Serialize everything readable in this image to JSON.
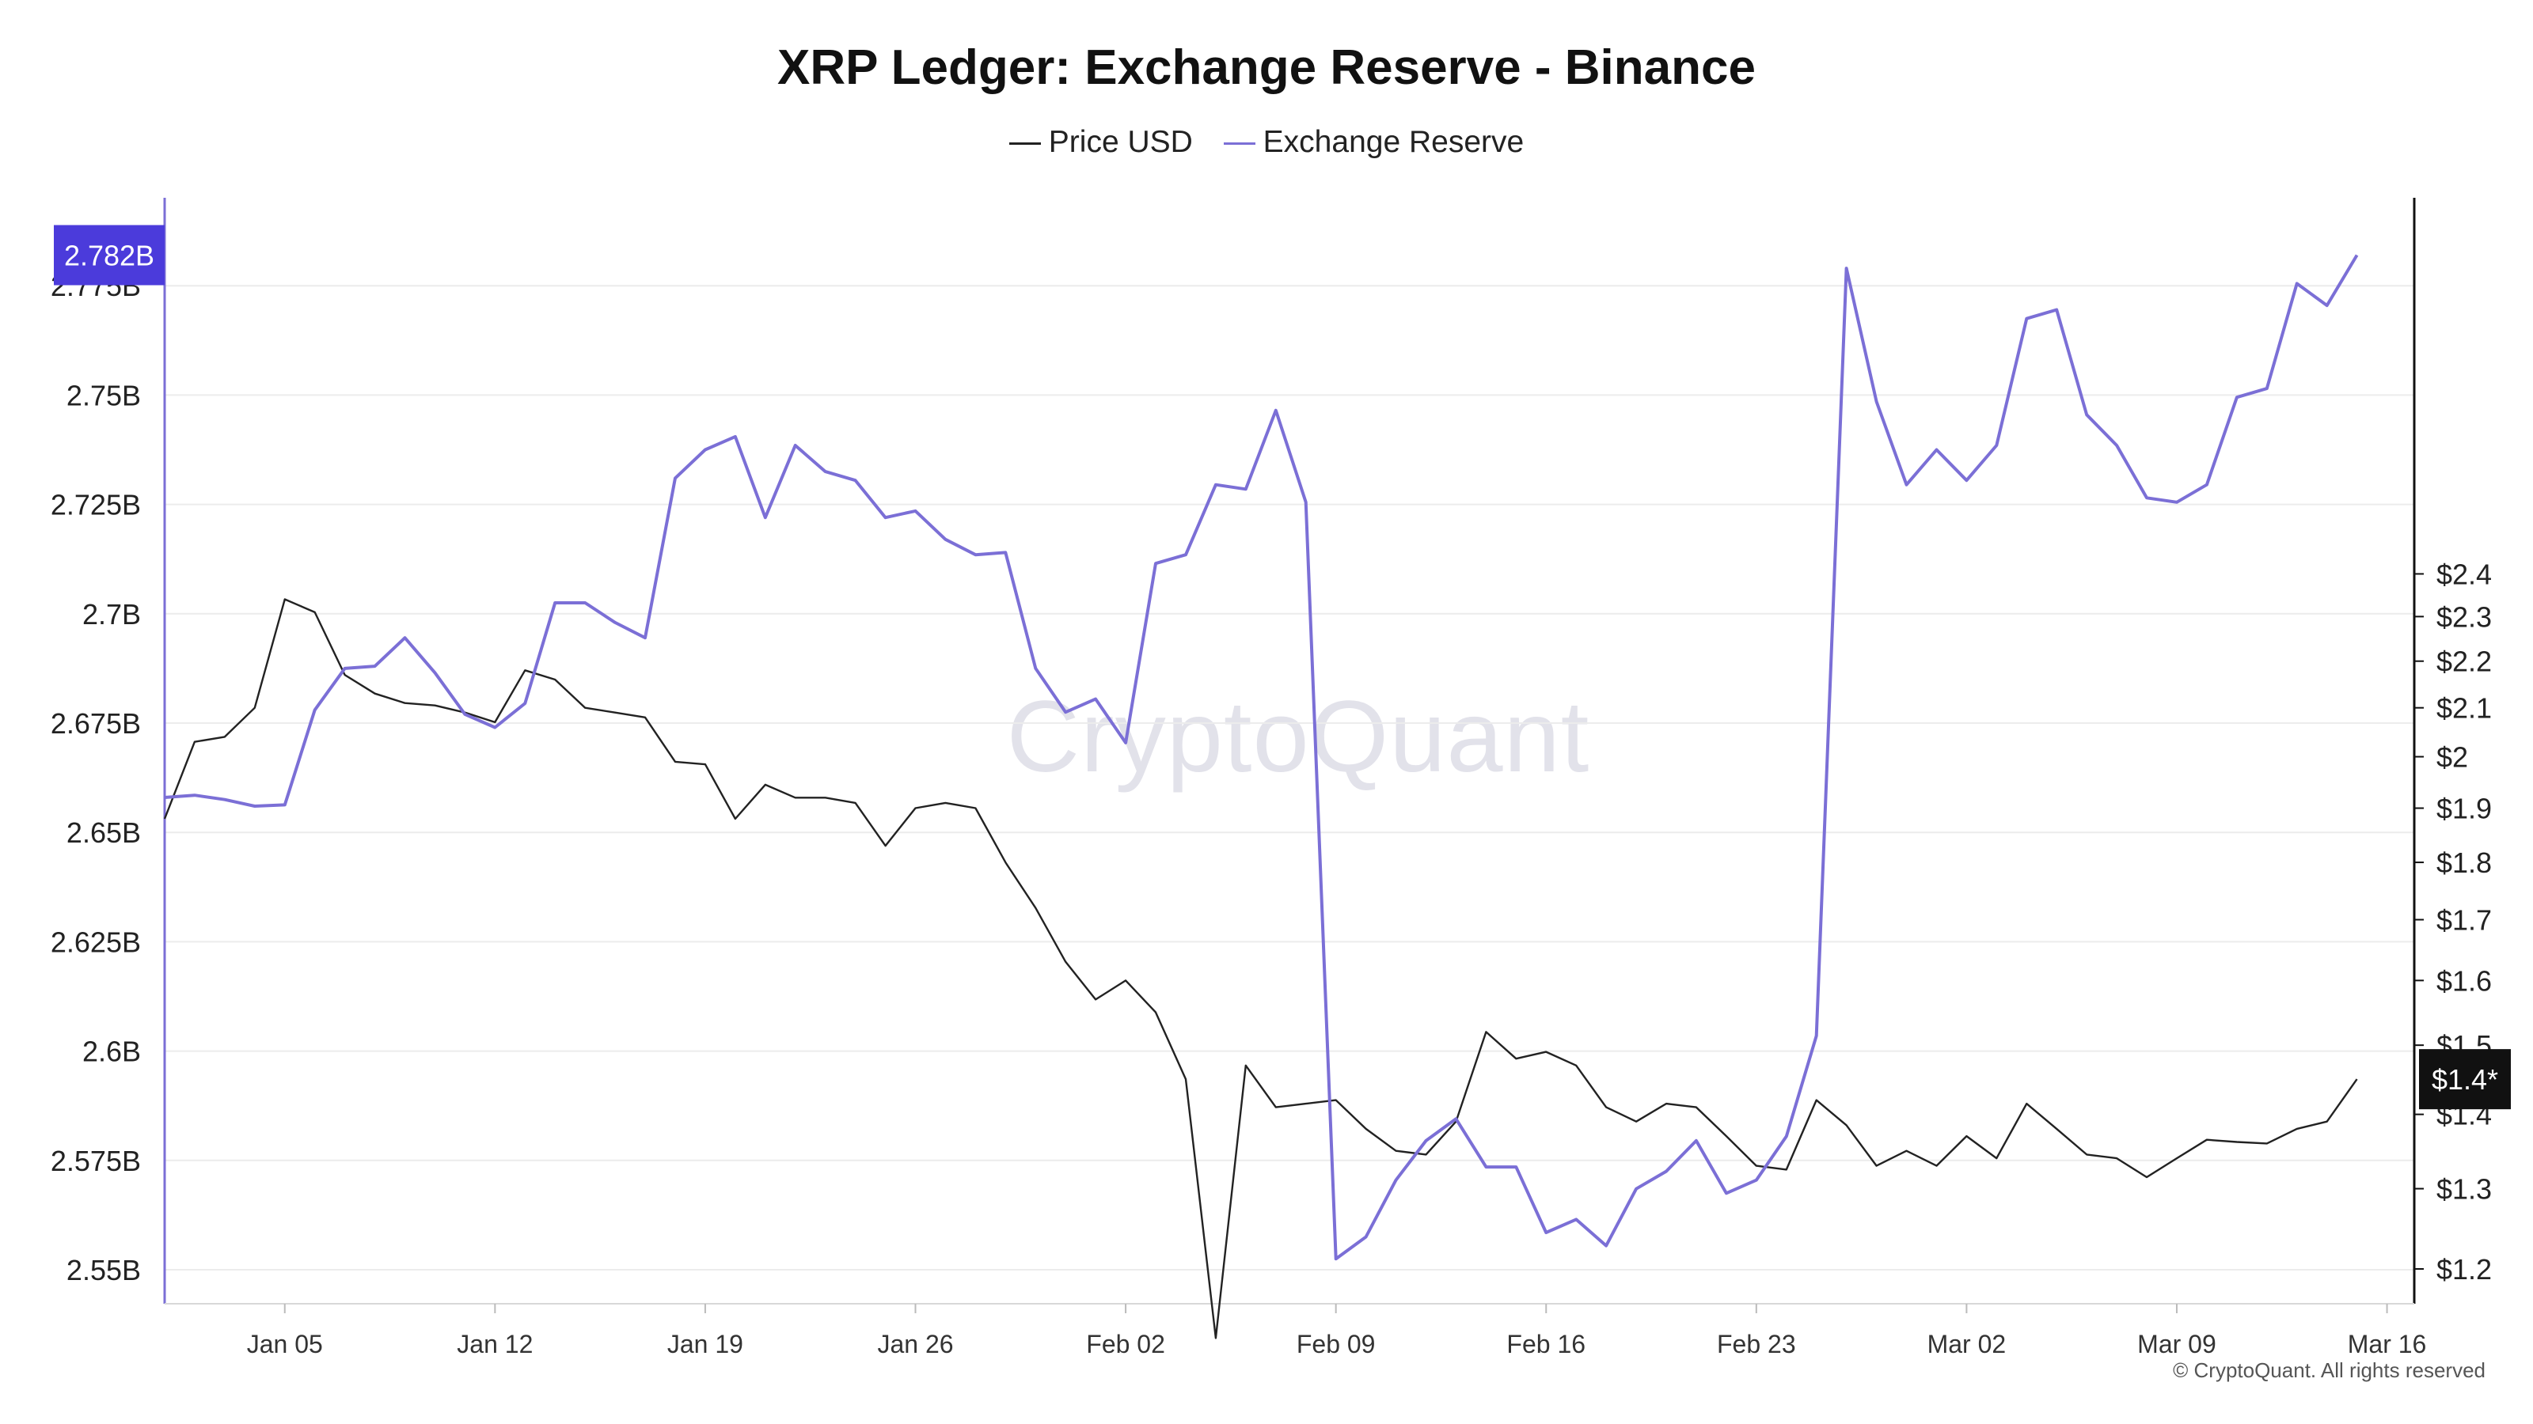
{
  "chart_data": {
    "type": "line",
    "title": "XRP Ledger: Exchange Reserve - Binance",
    "watermark": "CryptoQuant",
    "copyright": "© CryptoQuant. All rights reserved",
    "x_start": "2025-01-01",
    "x_tick_labels": [
      "Jan 05",
      "Jan 12",
      "Jan 19",
      "Jan 26",
      "Feb 02",
      "Feb 09",
      "Feb 16",
      "Feb 23",
      "Mar 02",
      "Mar 09",
      "Mar 16"
    ],
    "x_tick_dates": [
      "2025-01-05",
      "2025-01-12",
      "2025-01-19",
      "2025-01-26",
      "2025-02-02",
      "2025-02-09",
      "2025-02-16",
      "2025-02-23",
      "2025-03-02",
      "2025-03-09",
      "2025-03-16"
    ],
    "left_axis": {
      "series": "Exchange Reserve",
      "ticks": [
        "2.55B",
        "2.575B",
        "2.6B",
        "2.625B",
        "2.65B",
        "2.675B",
        "2.7B",
        "2.725B",
        "2.75B",
        "2.775B"
      ],
      "tick_values": [
        2.55,
        2.575,
        2.6,
        2.625,
        2.65,
        2.675,
        2.7,
        2.725,
        2.75,
        2.775
      ],
      "unit": "B",
      "current_label": "2.782B",
      "current_value": 2.782
    },
    "right_axis": {
      "series": "Price USD",
      "scale": "log",
      "ticks": [
        "$1.2",
        "$1.3",
        "$1.4",
        "$1.5",
        "$1.6",
        "$1.7",
        "$1.8",
        "$1.9",
        "$2",
        "$2.1",
        "$2.2",
        "$2.3",
        "$2.4"
      ],
      "tick_values": [
        1.2,
        1.3,
        1.4,
        1.5,
        1.6,
        1.7,
        1.8,
        1.9,
        2.0,
        2.1,
        2.2,
        2.3,
        2.4
      ],
      "current_label": "$1.4*",
      "current_value": 1.45
    },
    "grid": true,
    "legend_position": "top-center",
    "series": [
      {
        "name": "Price USD",
        "color": "#222222",
        "axis": "right",
        "points": [
          [
            "2025-01-01",
            1.88
          ],
          [
            "2025-01-02",
            2.03
          ],
          [
            "2025-01-03",
            2.04
          ],
          [
            "2025-01-04",
            2.1
          ],
          [
            "2025-01-05",
            2.34
          ],
          [
            "2025-01-06",
            2.31
          ],
          [
            "2025-01-07",
            2.17
          ],
          [
            "2025-01-08",
            2.13
          ],
          [
            "2025-01-09",
            2.11
          ],
          [
            "2025-01-10",
            2.105
          ],
          [
            "2025-01-11",
            2.09
          ],
          [
            "2025-01-12",
            2.07
          ],
          [
            "2025-01-13",
            2.18
          ],
          [
            "2025-01-14",
            2.16
          ],
          [
            "2025-01-15",
            2.1
          ],
          [
            "2025-01-16",
            2.09
          ],
          [
            "2025-01-17",
            2.08
          ],
          [
            "2025-01-18",
            1.99
          ],
          [
            "2025-01-19",
            1.985
          ],
          [
            "2025-01-20",
            1.88
          ],
          [
            "2025-01-21",
            1.945
          ],
          [
            "2025-01-22",
            1.92
          ],
          [
            "2025-01-23",
            1.92
          ],
          [
            "2025-01-24",
            1.91
          ],
          [
            "2025-01-25",
            1.83
          ],
          [
            "2025-01-26",
            1.9
          ],
          [
            "2025-01-27",
            1.91
          ],
          [
            "2025-01-28",
            1.9
          ],
          [
            "2025-01-29",
            1.8
          ],
          [
            "2025-01-30",
            1.72
          ],
          [
            "2025-01-31",
            1.63
          ],
          [
            "2025-02-01",
            1.57
          ],
          [
            "2025-02-02",
            1.6
          ],
          [
            "2025-02-03",
            1.55
          ],
          [
            "2025-02-04",
            1.45
          ],
          [
            "2025-02-05",
            1.12
          ],
          [
            "2025-02-06",
            1.47
          ],
          [
            "2025-02-07",
            1.41
          ],
          [
            "2025-02-08",
            1.415
          ],
          [
            "2025-02-09",
            1.42
          ],
          [
            "2025-02-10",
            1.38
          ],
          [
            "2025-02-11",
            1.35
          ],
          [
            "2025-02-12",
            1.345
          ],
          [
            "2025-02-13",
            1.39
          ],
          [
            "2025-02-14",
            1.52
          ],
          [
            "2025-02-15",
            1.48
          ],
          [
            "2025-02-16",
            1.49
          ],
          [
            "2025-02-17",
            1.47
          ],
          [
            "2025-02-18",
            1.41
          ],
          [
            "2025-02-19",
            1.39
          ],
          [
            "2025-02-20",
            1.415
          ],
          [
            "2025-02-21",
            1.41
          ],
          [
            "2025-02-22",
            1.37
          ],
          [
            "2025-02-23",
            1.33
          ],
          [
            "2025-02-24",
            1.325
          ],
          [
            "2025-02-25",
            1.42
          ],
          [
            "2025-02-26",
            1.385
          ],
          [
            "2025-02-27",
            1.33
          ],
          [
            "2025-02-28",
            1.35
          ],
          [
            "2025-03-01",
            1.33
          ],
          [
            "2025-03-02",
            1.37
          ],
          [
            "2025-03-03",
            1.34
          ],
          [
            "2025-03-04",
            1.415
          ],
          [
            "2025-03-05",
            1.38
          ],
          [
            "2025-03-06",
            1.345
          ],
          [
            "2025-03-07",
            1.34
          ],
          [
            "2025-03-08",
            1.315
          ],
          [
            "2025-03-09",
            1.34
          ],
          [
            "2025-03-10",
            1.365
          ],
          [
            "2025-03-11",
            1.362
          ],
          [
            "2025-03-12",
            1.36
          ],
          [
            "2025-03-13",
            1.38
          ],
          [
            "2025-03-14",
            1.39
          ],
          [
            "2025-03-15",
            1.45
          ]
        ]
      },
      {
        "name": "Exchange Reserve",
        "color": "#7b6fd6",
        "axis": "left",
        "points": [
          [
            "2025-01-01",
            2.658
          ],
          [
            "2025-01-02",
            2.6585
          ],
          [
            "2025-01-03",
            2.6575
          ],
          [
            "2025-01-04",
            2.656
          ],
          [
            "2025-01-05",
            2.6563
          ],
          [
            "2025-01-06",
            2.678
          ],
          [
            "2025-01-07",
            2.6875
          ],
          [
            "2025-01-08",
            2.688
          ],
          [
            "2025-01-09",
            2.6945
          ],
          [
            "2025-01-10",
            2.6865
          ],
          [
            "2025-01-11",
            2.677
          ],
          [
            "2025-01-12",
            2.674
          ],
          [
            "2025-01-13",
            2.6795
          ],
          [
            "2025-01-14",
            2.7025
          ],
          [
            "2025-01-15",
            2.7025
          ],
          [
            "2025-01-16",
            2.698
          ],
          [
            "2025-01-17",
            2.6945
          ],
          [
            "2025-01-18",
            2.731
          ],
          [
            "2025-01-19",
            2.7375
          ],
          [
            "2025-01-20",
            2.7405
          ],
          [
            "2025-01-21",
            2.722
          ],
          [
            "2025-01-22",
            2.7385
          ],
          [
            "2025-01-23",
            2.7325
          ],
          [
            "2025-01-24",
            2.7305
          ],
          [
            "2025-01-25",
            2.722
          ],
          [
            "2025-01-26",
            2.7235
          ],
          [
            "2025-01-27",
            2.717
          ],
          [
            "2025-01-28",
            2.7135
          ],
          [
            "2025-01-29",
            2.714
          ],
          [
            "2025-01-30",
            2.6875
          ],
          [
            "2025-01-31",
            2.6775
          ],
          [
            "2025-02-01",
            2.6805
          ],
          [
            "2025-02-02",
            2.6705
          ],
          [
            "2025-02-03",
            2.7115
          ],
          [
            "2025-02-04",
            2.7135
          ],
          [
            "2025-02-05",
            2.7295
          ],
          [
            "2025-02-06",
            2.7285
          ],
          [
            "2025-02-07",
            2.7465
          ],
          [
            "2025-02-08",
            2.7255
          ],
          [
            "2025-02-09",
            2.5525
          ],
          [
            "2025-02-10",
            2.5575
          ],
          [
            "2025-02-11",
            2.5705
          ],
          [
            "2025-02-12",
            2.5795
          ],
          [
            "2025-02-13",
            2.5845
          ],
          [
            "2025-02-14",
            2.5735
          ],
          [
            "2025-02-15",
            2.5735
          ],
          [
            "2025-02-16",
            2.5585
          ],
          [
            "2025-02-17",
            2.5615
          ],
          [
            "2025-02-18",
            2.5555
          ],
          [
            "2025-02-19",
            2.5685
          ],
          [
            "2025-02-20",
            2.5725
          ],
          [
            "2025-02-21",
            2.5795
          ],
          [
            "2025-02-22",
            2.5675
          ],
          [
            "2025-02-23",
            2.5705
          ],
          [
            "2025-02-24",
            2.5805
          ],
          [
            "2025-02-25",
            2.6035
          ],
          [
            "2025-02-26",
            2.779
          ],
          [
            "2025-02-27",
            2.7485
          ],
          [
            "2025-02-28",
            2.7295
          ],
          [
            "2025-03-01",
            2.7375
          ],
          [
            "2025-03-02",
            2.7305
          ],
          [
            "2025-03-03",
            2.7385
          ],
          [
            "2025-03-04",
            2.7675
          ],
          [
            "2025-03-05",
            2.7695
          ],
          [
            "2025-03-06",
            2.7455
          ],
          [
            "2025-03-07",
            2.7385
          ],
          [
            "2025-03-08",
            2.7265
          ],
          [
            "2025-03-09",
            2.7255
          ],
          [
            "2025-03-10",
            2.7295
          ],
          [
            "2025-03-11",
            2.7495
          ],
          [
            "2025-03-12",
            2.7515
          ],
          [
            "2025-03-13",
            2.7755
          ],
          [
            "2025-03-14",
            2.7705
          ],
          [
            "2025-03-15",
            2.782
          ]
        ]
      }
    ]
  }
}
